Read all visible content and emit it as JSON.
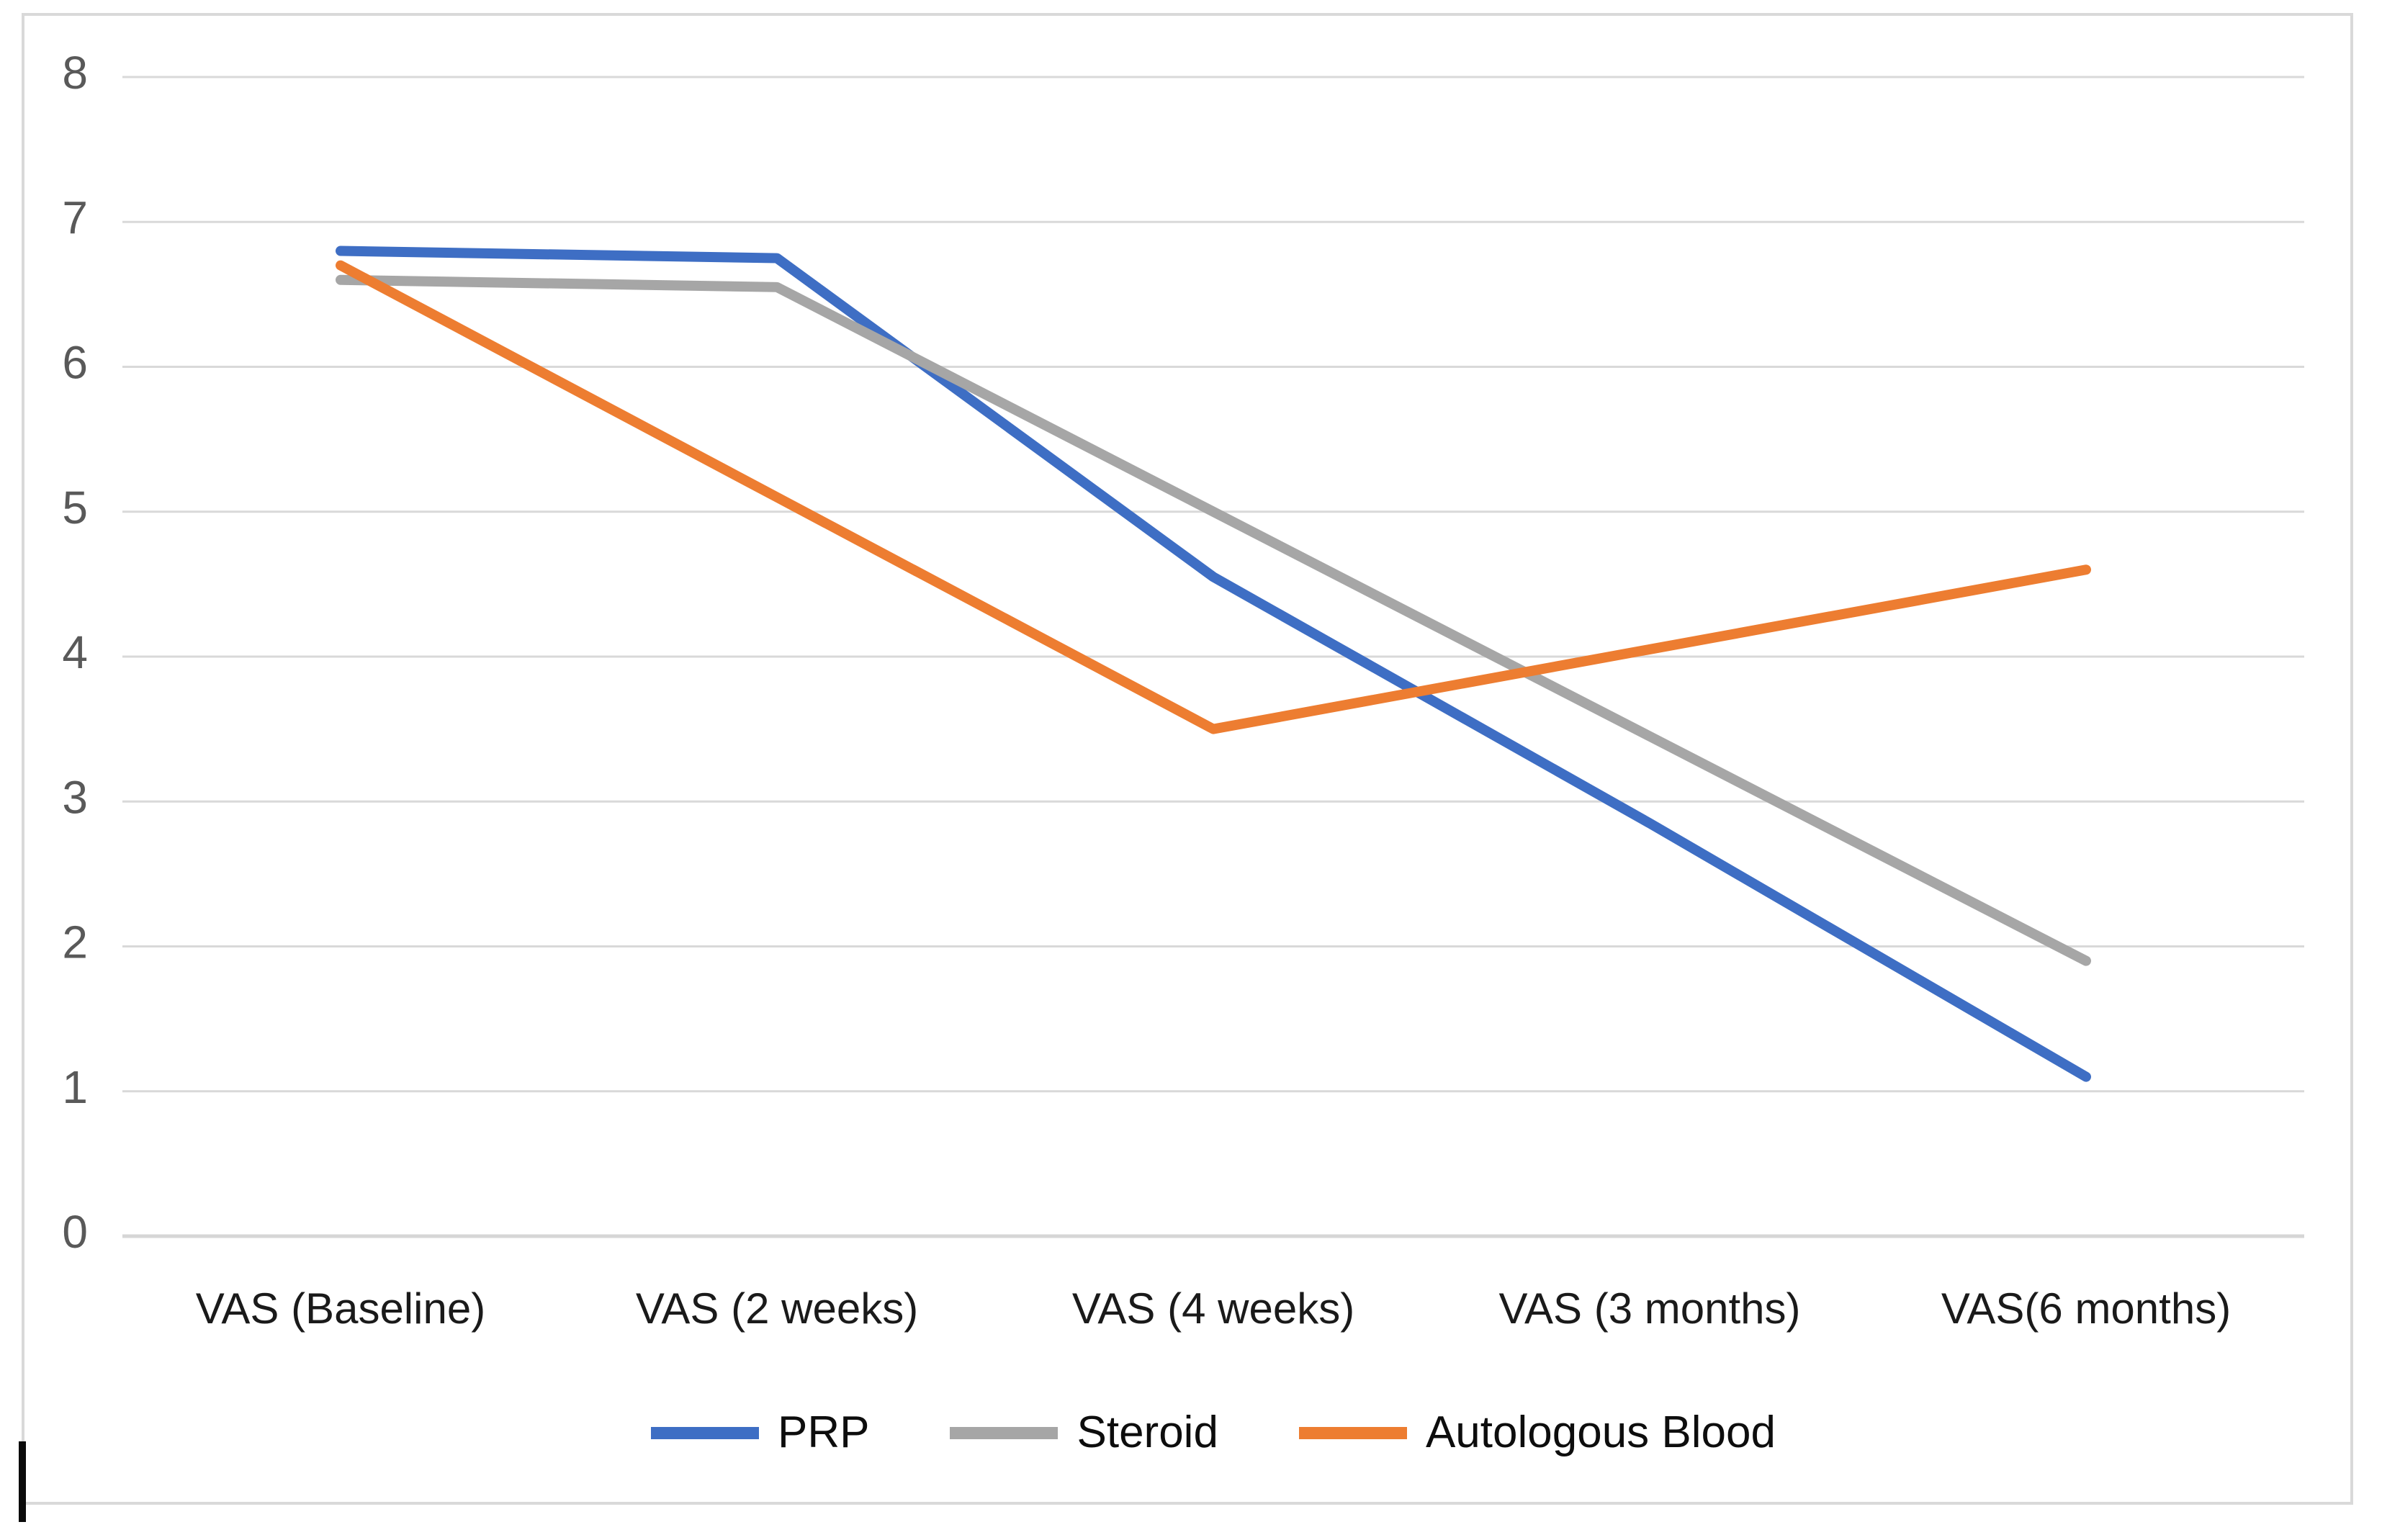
{
  "chart_data": {
    "type": "line",
    "title": "",
    "xlabel": "",
    "ylabel": "",
    "categories": [
      "VAS (Baseline)",
      "VAS (2 weeks)",
      "VAS (4 weeks)",
      "VAS (3 months)",
      "VAS(6 months)"
    ],
    "series": [
      {
        "name": "PRP",
        "color": "#3e6ec4",
        "values": [
          6.8,
          6.75,
          4.55,
          2.85,
          1.1
        ]
      },
      {
        "name": "Steroid",
        "color": "#a6a6a6",
        "values": [
          6.6,
          6.55,
          5.0,
          3.45,
          1.9
        ]
      },
      {
        "name": "Autologous Blood",
        "color": "#ed7d31",
        "values": [
          6.7,
          5.1,
          3.5,
          4.05,
          4.6
        ]
      }
    ],
    "ylim": [
      0,
      8
    ],
    "yticks": [
      0,
      1,
      2,
      3,
      4,
      5,
      6,
      7,
      8
    ],
    "grid": "horizontal-only",
    "legend_position": "bottom",
    "markers": "none"
  },
  "style": {
    "gridline_color": "#d9d9d9",
    "axis_line_color": "#d6d6d6",
    "ytick_label_color": "#595959",
    "xtick_label_color": "#1a1a1a",
    "legend_text_color": "#0d0d0d",
    "frame_border_color": "#d9d9d9",
    "background_color": "#ffffff",
    "cursor_color": "#0b0b0b"
  }
}
